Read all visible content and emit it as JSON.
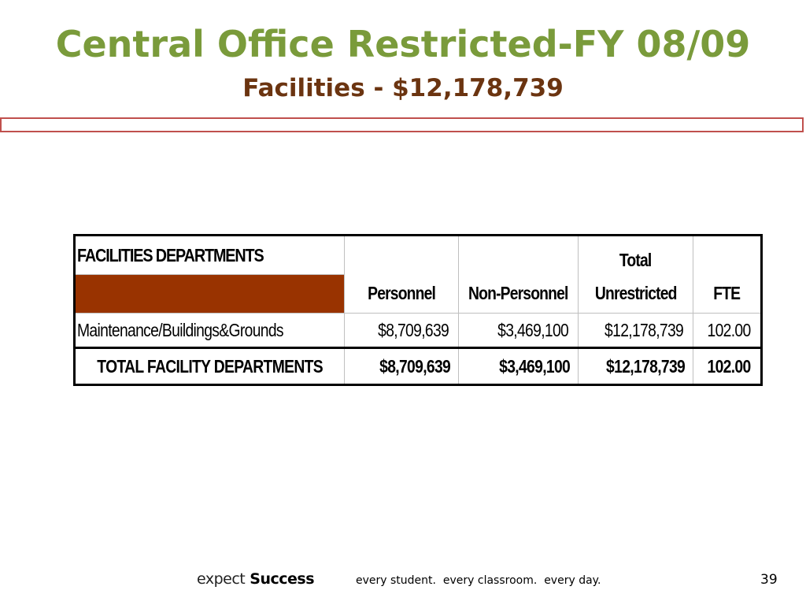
{
  "slide": {
    "title": "Central Office Restricted-FY 08/09",
    "subtitle": "Facilities - $12,178,739",
    "colors": {
      "title": "#7a9b3b",
      "subtitle": "#6b3410",
      "divider_border": "#c0504d",
      "header_band": "#993300"
    }
  },
  "table": {
    "section_header": "FACILITIES DEPARTMENTS",
    "columns": [
      {
        "line1": "",
        "line2": "Personnel"
      },
      {
        "line1": "",
        "line2": "Non-Personnel"
      },
      {
        "line1": "Total",
        "line2": "Unrestricted"
      },
      {
        "line1": "",
        "line2": "FTE"
      }
    ],
    "rows": [
      {
        "department": "Maintenance/Buildings&Grounds",
        "personnel": "$8,709,639",
        "non_personnel": "$3,469,100",
        "total_unrestricted": "$12,178,739",
        "fte": "102.00"
      }
    ],
    "total": {
      "label": "TOTAL FACILITY DEPARTMENTS",
      "personnel": "$8,709,639",
      "non_personnel": "$3,469,100",
      "total_unrestricted": "$12,178,739",
      "fte": "102.00"
    }
  },
  "footer": {
    "brand_prefix": "expect",
    "brand_bold": "Success",
    "tagline": "every student.  every classroom.  every day.",
    "page_number": "39"
  }
}
